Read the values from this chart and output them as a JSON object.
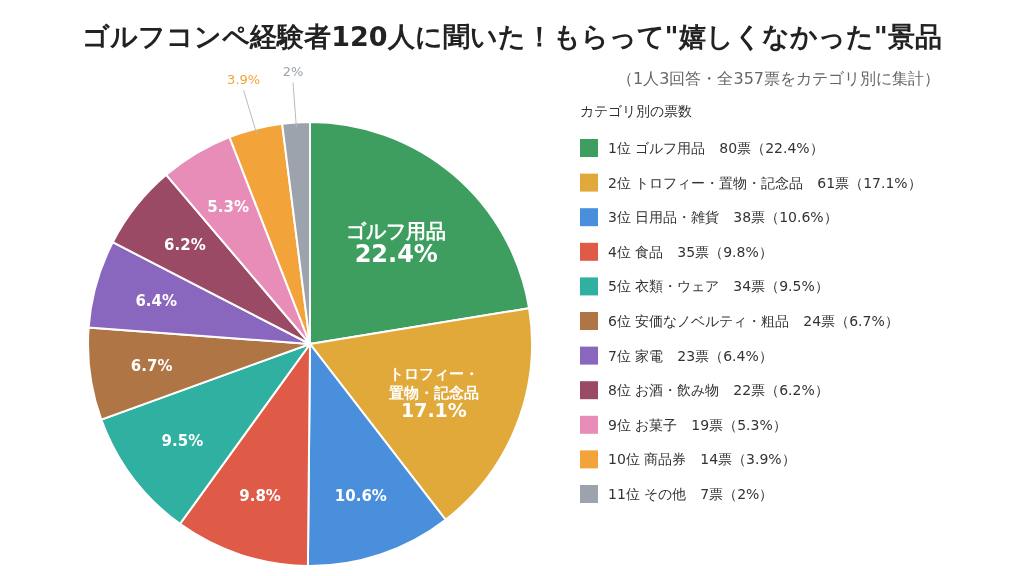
{
  "chart_data": {
    "type": "pie",
    "title": "ゴルフコンペ経験者120人に聞いた！もらって\"嬉しくなかった\"景品",
    "subtitle": "（1人3回答・全357票をカテゴリ別に集計）",
    "legend_title": "カテゴリ別の票数",
    "legend": "right",
    "categories": [
      "1位 ゴルフ用品　80票（22.4%）",
      "2位 トロフィー・置物・記念品　61票（17.1%）",
      "3位 日用品・雑貨　38票（10.6%）",
      "4位 食品　35票（9.8%）",
      "5位 衣類・ウェア　34票（9.5%）",
      "6位 安価なノベルティ・粗品　24票（6.7%）",
      "7位 家電　23票（6.4%）",
      "8位 お酒・飲み物　22票（6.2%）",
      "9位 お菓子　19票（5.3%）",
      "10位 商品券　14票（3.9%）",
      "11位 その他　7票（2%）"
    ],
    "values": [
      22.4,
      17.1,
      10.6,
      9.8,
      9.5,
      6.7,
      6.4,
      6.2,
      5.3,
      3.9,
      2
    ],
    "value_labels": [
      "ゴルフ用品\n22.4%",
      "トロフィー・置物・記念品\n17.1%",
      "10.6%",
      "9.8%",
      "9.5%",
      "6.7%",
      "6.4%",
      "6.2%",
      "5.3%",
      "3.9%",
      "2%"
    ],
    "colors": [
      "#3e9e5f",
      "#e0a93a",
      "#4a8fdb",
      "#e05a48",
      "#2fb0a0",
      "#b07545",
      "#8a67bf",
      "#9b4a66",
      "#e78db8",
      "#f2a33a",
      "#9ca3ad"
    ]
  }
}
